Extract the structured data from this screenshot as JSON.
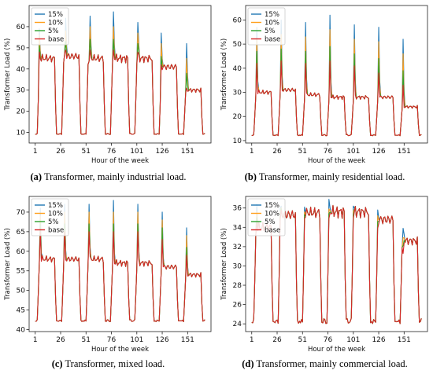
{
  "chart_data": [
    {
      "type": "line",
      "caption_tag": "(a)",
      "caption_text": "Transformer, mainly industrial load.",
      "xlabel": "Hour of the week",
      "ylabel": "Transformer Load (%)",
      "xticks": [
        1,
        26,
        51,
        76,
        101,
        126,
        151
      ],
      "xlim": [
        -5,
        174
      ],
      "yticks": [
        10,
        20,
        30,
        40,
        50,
        60
      ],
      "ylim": [
        5,
        70
      ],
      "legend_position": "top-left",
      "base_profile": "industrial",
      "day_params": [
        {
          "base": 45,
          "peak": [
            4,
            59,
            56,
            51,
            48
          ],
          "night": 9
        },
        {
          "base": 46,
          "peak": [
            6,
            64,
            58,
            53,
            49
          ],
          "night": 9
        },
        {
          "base": 45,
          "peak": [
            6,
            65,
            60,
            54,
            49
          ],
          "night": 9
        },
        {
          "base": 45,
          "peak": [
            5,
            67,
            60,
            54,
            49
          ],
          "night": 9
        },
        {
          "base": 45,
          "peak": [
            5,
            62,
            57,
            52,
            48
          ],
          "night": 9
        },
        {
          "base": 41,
          "peak": [
            4,
            57,
            52,
            46,
            42
          ],
          "night": 9
        },
        {
          "base": 30,
          "peak": [
            5,
            52,
            45,
            38,
            31
          ],
          "night": 9
        }
      ],
      "series": [
        {
          "name": "15%",
          "color": "#1f77b4"
        },
        {
          "name": "10%",
          "color": "#ff9f1c"
        },
        {
          "name": "5%",
          "color": "#2ca02c"
        },
        {
          "name": "base",
          "color": "#d62728"
        }
      ]
    },
    {
      "type": "line",
      "caption_tag": "(b)",
      "caption_text": "Transformer, mainly residential load.",
      "xlabel": "Hour of the week",
      "ylabel": "Transformer Load (%)",
      "xticks": [
        1,
        26,
        51,
        76,
        101,
        126,
        151
      ],
      "xlim": [
        -5,
        174
      ],
      "yticks": [
        10,
        20,
        30,
        40,
        50,
        60
      ],
      "ylim": [
        9,
        66
      ],
      "legend_position": "top-left",
      "base_profile": "residential",
      "day_params": [
        {
          "base": 30,
          "peak": [
            5,
            57,
            52,
            47,
            42
          ],
          "night": 12
        },
        {
          "base": 31,
          "peak": [
            5,
            60,
            54,
            48,
            43
          ],
          "night": 12
        },
        {
          "base": 29,
          "peak": [
            5,
            59,
            53,
            47,
            42
          ],
          "night": 12
        },
        {
          "base": 28,
          "peak": [
            5,
            62,
            56,
            49,
            43
          ],
          "night": 12
        },
        {
          "base": 28,
          "peak": [
            5,
            58,
            52,
            46,
            41
          ],
          "night": 12
        },
        {
          "base": 28,
          "peak": [
            5,
            57,
            51,
            44,
            38
          ],
          "night": 12
        },
        {
          "base": 24,
          "peak": [
            5,
            52,
            46,
            39,
            33
          ],
          "night": 12
        }
      ],
      "series": [
        {
          "name": "15%",
          "color": "#1f77b4"
        },
        {
          "name": "10%",
          "color": "#ff9f1c"
        },
        {
          "name": "5%",
          "color": "#2ca02c"
        },
        {
          "name": "base",
          "color": "#d62728"
        }
      ]
    },
    {
      "type": "line",
      "caption_tag": "(c)",
      "caption_text": "Transformer, mixed load.",
      "xlabel": "Hour of the week",
      "ylabel": "Transformer Load (%)",
      "xticks": [
        1,
        26,
        51,
        76,
        101,
        126,
        151
      ],
      "xlim": [
        -5,
        174
      ],
      "yticks": [
        40,
        45,
        50,
        55,
        60,
        65,
        70
      ],
      "ylim": [
        39.5,
        74
      ],
      "legend_position": "top-left",
      "base_profile": "mixed",
      "day_params": [
        {
          "base": 58,
          "peak": [
            5,
            71,
            69,
            67,
            65
          ],
          "night": 42
        },
        {
          "base": 58,
          "peak": [
            5,
            72,
            70,
            67,
            65
          ],
          "night": 42
        },
        {
          "base": 58,
          "peak": [
            5,
            72,
            70,
            67,
            65
          ],
          "night": 42
        },
        {
          "base": 57,
          "peak": [
            5,
            73,
            70,
            67,
            65
          ],
          "night": 42
        },
        {
          "base": 57,
          "peak": [
            5,
            72,
            70,
            67,
            65
          ],
          "night": 42
        },
        {
          "base": 56,
          "peak": [
            5,
            70,
            68,
            66,
            63
          ],
          "night": 42
        },
        {
          "base": 54,
          "peak": [
            5,
            66,
            64,
            61,
            59
          ],
          "night": 42
        }
      ],
      "series": [
        {
          "name": "15%",
          "color": "#1f77b4"
        },
        {
          "name": "10%",
          "color": "#ff9f1c"
        },
        {
          "name": "5%",
          "color": "#2ca02c"
        },
        {
          "name": "base",
          "color": "#d62728"
        }
      ]
    },
    {
      "type": "line",
      "caption_tag": "(d)",
      "caption_text": "Transformer, mainly commercial load.",
      "xlabel": "Hour of the week",
      "ylabel": "Transformer Load (%)",
      "xticks": [
        1,
        26,
        51,
        76,
        101,
        126,
        151
      ],
      "xlim": [
        -5,
        174
      ],
      "yticks": [
        24,
        26,
        28,
        30,
        32,
        34,
        36
      ],
      "ylim": [
        23.2,
        37.2
      ],
      "legend_position": "top-left",
      "base_profile": "commercial",
      "day_params": [
        {
          "base": 34,
          "peak": [
            5,
            36.4,
            35.6,
            35.0,
            34.5
          ],
          "night": 24
        },
        {
          "base": 35.3,
          "peak": [
            4,
            36.0,
            35.5,
            35.2,
            34.8
          ],
          "night": 24
        },
        {
          "base": 35.5,
          "peak": [
            4,
            36.1,
            35.6,
            35.3,
            34.9
          ],
          "night": 24
        },
        {
          "base": 35.6,
          "peak": [
            4,
            36.9,
            35.9,
            35.4,
            34.9
          ],
          "night": 24
        },
        {
          "base": 35.6,
          "peak": [
            4,
            36.2,
            35.7,
            35.3,
            34.9
          ],
          "night": 24
        },
        {
          "base": 34.8,
          "peak": [
            4,
            35.8,
            35.2,
            34.6,
            33.9
          ],
          "night": 24
        },
        {
          "base": 32.6,
          "peak": [
            5,
            33.9,
            32.9,
            32.1,
            31.3
          ],
          "night": 24
        }
      ],
      "series": [
        {
          "name": "15%",
          "color": "#1f77b4"
        },
        {
          "name": "10%",
          "color": "#ff9f1c"
        },
        {
          "name": "5%",
          "color": "#2ca02c"
        },
        {
          "name": "base",
          "color": "#d62728"
        }
      ]
    }
  ]
}
